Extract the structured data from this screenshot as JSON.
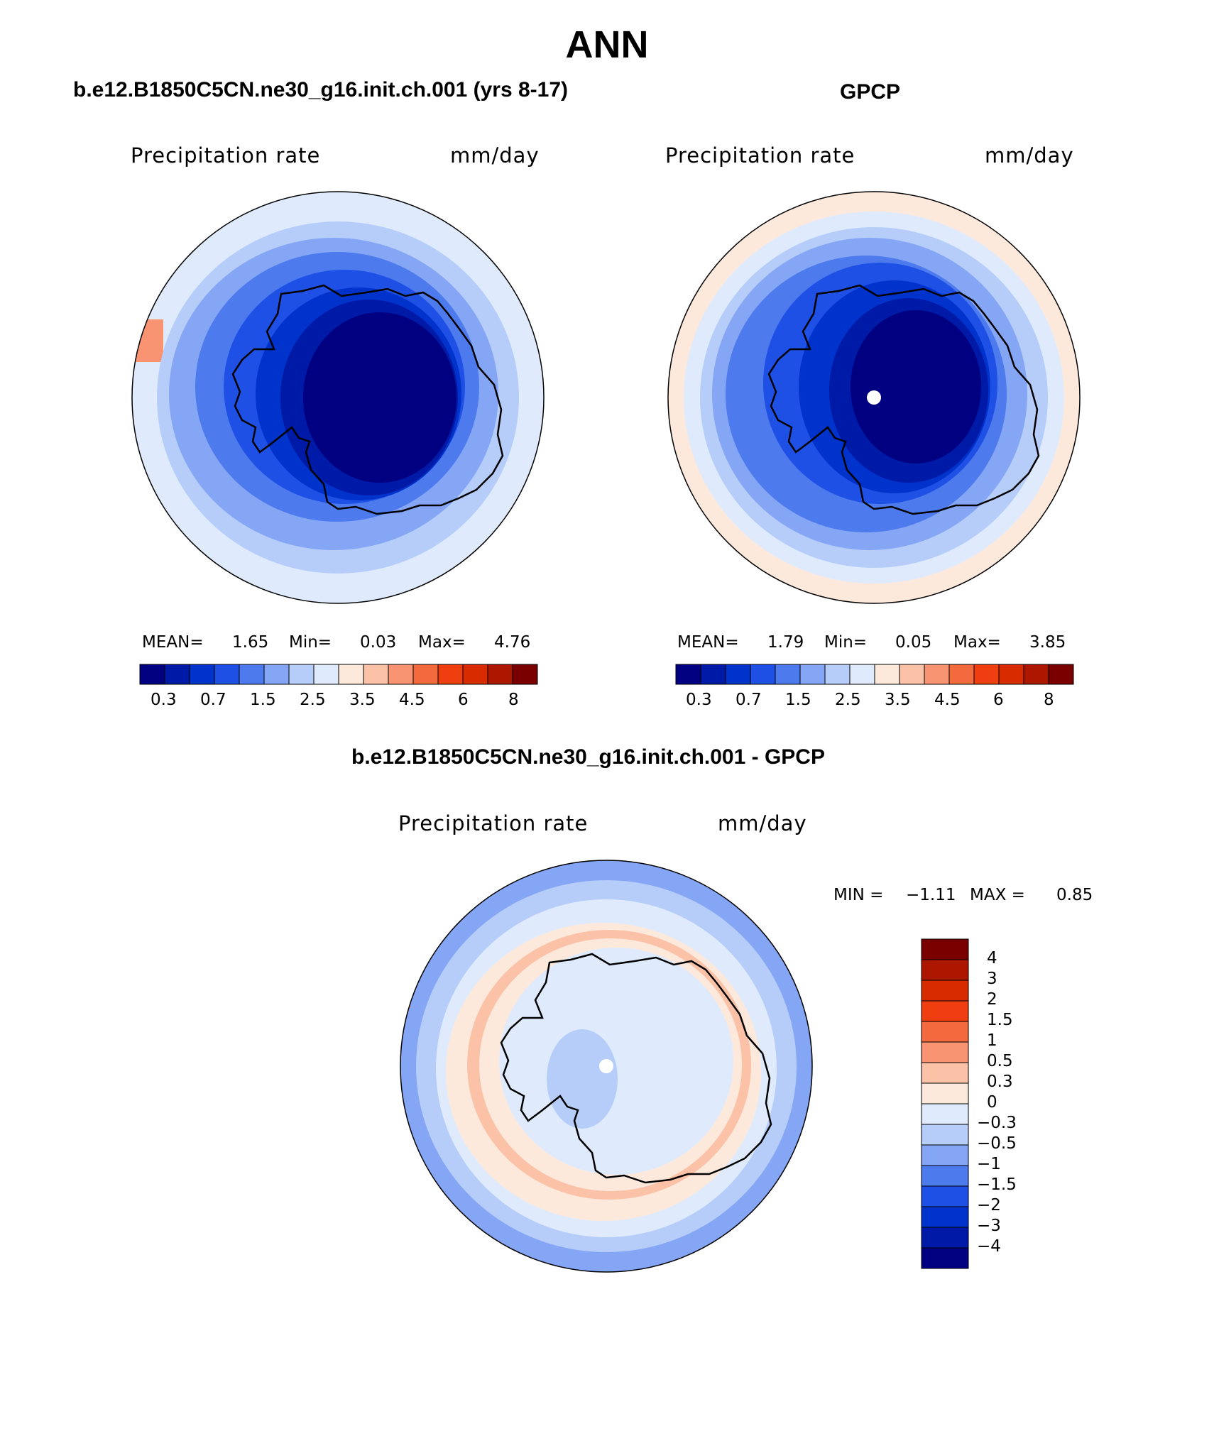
{
  "page_title": "ANN",
  "panels": [
    {
      "title": "b.e12.B1850C5CN.ne30_g16.init.ch.001 (yrs 8-17)",
      "variable_label": "Precipitation rate",
      "unit_label": "mm/day",
      "stats": {
        "mean_label": "MEAN=",
        "mean": "1.65",
        "min_label": "Min=",
        "min": "0.03",
        "max_label": "Max=",
        "max": "4.76"
      }
    },
    {
      "title": "GPCP",
      "variable_label": "Precipitation rate",
      "unit_label": "mm/day",
      "stats": {
        "mean_label": "MEAN=",
        "mean": "1.79",
        "min_label": "Min=",
        "min": "0.05",
        "max_label": "Max=",
        "max": "3.85"
      }
    },
    {
      "title": "b.e12.B1850C5CN.ne30_g16.init.ch.001 - GPCP",
      "variable_label": "Precipitation rate",
      "unit_label": "mm/day",
      "stats": {
        "min_label": "MIN =",
        "min": "−1.11",
        "max_label": "MAX =",
        "max": "0.85"
      }
    }
  ],
  "colorbar_abs": {
    "colors": [
      "#000080",
      "#001aa8",
      "#0033cc",
      "#1f50e6",
      "#4d7aed",
      "#85a6f5",
      "#b6cdfa",
      "#dfebfd",
      "#fde9dc",
      "#fcc2a7",
      "#f99472",
      "#f36a3e",
      "#ef3e10",
      "#d82c00",
      "#ad1700",
      "#7a0000"
    ],
    "tick_labels": [
      "0.3",
      "0.7",
      "1.5",
      "2.5",
      "3.5",
      "4.5",
      "6",
      "8"
    ]
  },
  "colorbar_diff": {
    "colors_bottom_to_top": [
      "#000080",
      "#001aa8",
      "#0033cc",
      "#1f50e6",
      "#4d7aed",
      "#85a6f5",
      "#b6cdfa",
      "#dfebfd",
      "#fde9dc",
      "#fcc2a7",
      "#f99472",
      "#f36a3e",
      "#ef3e10",
      "#d82c00",
      "#ad1700",
      "#7a0000"
    ],
    "tick_labels_top_to_bottom": [
      "4",
      "3",
      "2",
      "1.5",
      "1",
      "0.5",
      "0.3",
      "0",
      "−0.3",
      "−0.5",
      "−1",
      "−1.5",
      "−2",
      "−3",
      "−4"
    ]
  }
}
